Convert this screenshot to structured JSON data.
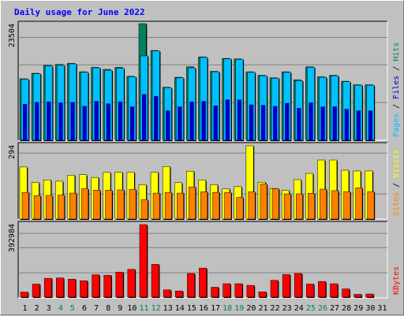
{
  "title": "Daily usage for June 2022",
  "colors": {
    "background": "#c0c0c0",
    "plot_background": "#c0c0c0",
    "title": "#0000ff",
    "pages": "#0000c0",
    "files": "#00c0ff",
    "hits": "#008060",
    "sites": "#ff8000",
    "visits": "#ffff00",
    "kbytes": "#ff0000",
    "weekend_label": "#008060",
    "weekday_label": "#000000"
  },
  "chart_data": [
    {
      "type": "bar",
      "panel": "hits-files-pages",
      "categories": [
        "1",
        "2",
        "3",
        "4",
        "5",
        "6",
        "7",
        "8",
        "9",
        "10",
        "11",
        "12",
        "13",
        "14",
        "15",
        "16",
        "17",
        "18",
        "19",
        "20",
        "21",
        "22",
        "23",
        "24",
        "25",
        "26",
        "27",
        "28",
        "29",
        "30"
      ],
      "y_max_label": "23504",
      "ylim": [
        0,
        23504
      ],
      "series": [
        {
          "name": "Hits",
          "values": [
            12400,
            13500,
            15100,
            15300,
            15500,
            13800,
            14700,
            14300,
            14700,
            12900,
            23504,
            18100,
            10700,
            12700,
            14800,
            16800,
            13900,
            16500,
            16400,
            13800,
            13100,
            12600,
            13800,
            12200,
            14800,
            12800,
            13100,
            11900,
            11200,
            11200
          ]
        },
        {
          "name": "Files",
          "values": [
            12300,
            13400,
            15000,
            15100,
            15400,
            13700,
            14600,
            14100,
            14500,
            12800,
            17000,
            18000,
            10600,
            12600,
            14600,
            16700,
            13800,
            16400,
            16300,
            13700,
            13000,
            12500,
            13700,
            12000,
            14700,
            12700,
            13000,
            11800,
            11100,
            11100
          ]
        },
        {
          "name": "Pages",
          "values": [
            7300,
            7700,
            7800,
            7600,
            7700,
            6900,
            7900,
            7400,
            7800,
            6800,
            9300,
            8900,
            6000,
            6800,
            7800,
            7900,
            7000,
            8200,
            8200,
            7200,
            7100,
            6900,
            7500,
            6500,
            7600,
            6800,
            6800,
            6300,
            6000,
            6000
          ]
        }
      ],
      "legend": [
        "Pages",
        "Files",
        "Hits"
      ],
      "legend_placement": "right-vertical"
    },
    {
      "type": "bar",
      "panel": "visits-sites",
      "categories": [
        "1",
        "2",
        "3",
        "4",
        "5",
        "6",
        "7",
        "8",
        "9",
        "10",
        "11",
        "12",
        "13",
        "14",
        "15",
        "16",
        "17",
        "18",
        "19",
        "20",
        "21",
        "22",
        "23",
        "24",
        "25",
        "26",
        "27",
        "28",
        "29",
        "30"
      ],
      "y_max_label": "294",
      "ylim": [
        0,
        294
      ],
      "series": [
        {
          "name": "Visits",
          "values": [
            209,
            147,
            157,
            152,
            176,
            178,
            167,
            187,
            188,
            188,
            138,
            188,
            211,
            146,
            192,
            157,
            138,
            121,
            130,
            294,
            148,
            123,
            115,
            158,
            183,
            237,
            237,
            196,
            193,
            193
          ]
        },
        {
          "name": "Sites",
          "values": [
            107,
            94,
            95,
            96,
            104,
            122,
            116,
            116,
            117,
            119,
            78,
            104,
            107,
            104,
            129,
            109,
            107,
            107,
            87,
            109,
            140,
            122,
            101,
            101,
            103,
            120,
            114,
            110,
            125,
            110
          ]
        }
      ],
      "legend": [
        "Sites",
        "Visits"
      ],
      "legend_placement": "right-vertical"
    },
    {
      "type": "bar",
      "panel": "kbytes",
      "categories": [
        "1",
        "2",
        "3",
        "4",
        "5",
        "6",
        "7",
        "8",
        "9",
        "10",
        "11",
        "12",
        "13",
        "14",
        "15",
        "16",
        "17",
        "18",
        "19",
        "20",
        "21",
        "22",
        "23",
        "24",
        "25",
        "26",
        "27",
        "28",
        "29",
        "30"
      ],
      "y_max_label": "392984",
      "ylim": [
        0,
        392984
      ],
      "series": [
        {
          "name": "KBytes",
          "values": [
            31000,
            74000,
            105000,
            107000,
            100000,
            92000,
            124000,
            121000,
            138000,
            153000,
            392984,
            180000,
            43000,
            37000,
            131000,
            160000,
            57000,
            76000,
            76000,
            67000,
            32000,
            94000,
            125000,
            131000,
            74000,
            88000,
            76000,
            48000,
            19000,
            0
          ]
        }
      ],
      "legend": [
        "KBytes"
      ],
      "legend_placement": "right-vertical"
    }
  ],
  "x_axis": {
    "labels": [
      "1",
      "2",
      "3",
      "4",
      "5",
      "6",
      "7",
      "8",
      "9",
      "10",
      "11",
      "12",
      "13",
      "14",
      "15",
      "16",
      "17",
      "18",
      "19",
      "20",
      "21",
      "22",
      "23",
      "24",
      "25",
      "26",
      "27",
      "28",
      "29",
      "30",
      "31"
    ],
    "weekend_days": [
      "4",
      "5",
      "11",
      "12",
      "18",
      "19",
      "25",
      "26"
    ]
  }
}
